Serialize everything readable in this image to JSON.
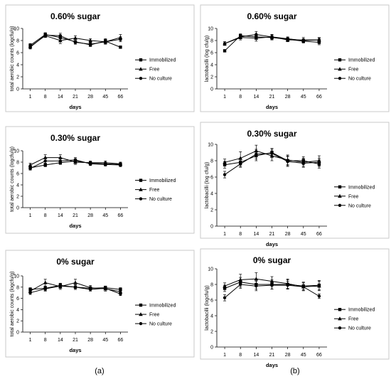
{
  "figure": {
    "panel_labels": [
      "(a)",
      "(b)"
    ]
  },
  "chart_data": [
    {
      "type": "line",
      "title": "0.60% sugar",
      "xlabel": "days",
      "ylabel": "total aerobic counts (logcfu/g)",
      "categories": [
        "1",
        "8",
        "14",
        "21",
        "28",
        "45",
        "66"
      ],
      "ylim": [
        0,
        10
      ],
      "yticks": [
        "0",
        "2",
        "4",
        "6",
        "8",
        "10"
      ],
      "legend_position": "right",
      "series": [
        {
          "name": "Immobilized",
          "marker": "square",
          "values": [
            7.2,
            9.0,
            8.5,
            7.8,
            7.3,
            7.9,
            6.9
          ],
          "err": [
            0.3,
            0.3,
            0.4,
            0.4,
            0.3,
            0.4,
            0.2
          ]
        },
        {
          "name": "Free",
          "marker": "triangle",
          "values": [
            7.0,
            8.8,
            8.0,
            8.4,
            8.0,
            7.8,
            8.5
          ],
          "err": [
            0.3,
            0.3,
            0.5,
            0.4,
            0.3,
            0.4,
            0.5
          ]
        },
        {
          "name": "No culture",
          "marker": "circle",
          "values": [
            6.9,
            8.9,
            8.8,
            7.7,
            7.4,
            7.8,
            8.2
          ],
          "err": [
            0.3,
            0.3,
            0.4,
            0.3,
            0.3,
            0.4,
            0.4
          ]
        }
      ]
    },
    {
      "type": "line",
      "title": "0.60% sugar",
      "xlabel": "days",
      "ylabel": "lactobacilli (log cfu/g)",
      "categories": [
        "1",
        "8",
        "14",
        "21",
        "28",
        "45",
        "66"
      ],
      "ylim": [
        0,
        10
      ],
      "yticks": [
        "0",
        "2",
        "4",
        "6",
        "8",
        "10"
      ],
      "legend_position": "right",
      "series": [
        {
          "name": "Immobilized",
          "marker": "square",
          "values": [
            6.3,
            8.8,
            8.6,
            8.5,
            8.2,
            7.9,
            7.7
          ],
          "err": [
            0.2,
            0.3,
            0.4,
            0.4,
            0.3,
            0.3,
            0.4
          ]
        },
        {
          "name": "Free",
          "marker": "triangle",
          "values": [
            7.5,
            8.5,
            8.4,
            8.6,
            8.1,
            8.1,
            8.1
          ],
          "err": [
            0.3,
            0.4,
            0.5,
            0.4,
            0.3,
            0.4,
            0.4
          ]
        },
        {
          "name": "No culture",
          "marker": "circle",
          "values": [
            7.5,
            8.6,
            9.0,
            8.6,
            8.3,
            8.0,
            8.1
          ],
          "err": [
            0.3,
            0.3,
            0.5,
            0.4,
            0.3,
            0.3,
            0.3
          ]
        }
      ]
    },
    {
      "type": "line",
      "title": "0.30% sugar",
      "xlabel": "days",
      "ylabel": "total aerobic counts (logcfu/g)",
      "categories": [
        "1",
        "8",
        "14",
        "21",
        "28",
        "45",
        "66"
      ],
      "ylim": [
        0,
        10
      ],
      "yticks": [
        "0",
        "2",
        "4",
        "6",
        "8",
        "10"
      ],
      "legend_position": "right",
      "series": [
        {
          "name": "Immobilized",
          "marker": "square",
          "values": [
            7.0,
            7.5,
            7.9,
            8.2,
            7.8,
            7.7,
            7.6
          ],
          "err": [
            0.3,
            0.3,
            0.3,
            0.4,
            0.3,
            0.3,
            0.3
          ]
        },
        {
          "name": "Free",
          "marker": "triangle",
          "values": [
            7.5,
            8.8,
            8.8,
            8.0,
            7.9,
            7.9,
            7.7
          ],
          "err": [
            0.3,
            0.5,
            0.5,
            0.4,
            0.3,
            0.3,
            0.3
          ]
        },
        {
          "name": "No culture",
          "marker": "circle",
          "values": [
            6.9,
            8.2,
            8.2,
            8.4,
            7.7,
            7.6,
            7.5
          ],
          "err": [
            0.3,
            0.4,
            0.4,
            0.4,
            0.3,
            0.3,
            0.3
          ]
        }
      ]
    },
    {
      "type": "line",
      "title": "0.30% sugar",
      "xlabel": "days",
      "ylabel": "lactobacilli (log cfu/g)",
      "categories": [
        "1",
        "8",
        "14",
        "21",
        "28",
        "45",
        "66"
      ],
      "ylim": [
        0,
        10
      ],
      "yticks": [
        "0",
        "2",
        "4",
        "6",
        "8",
        "10"
      ],
      "legend_position": "right",
      "series": [
        {
          "name": "Immobilized",
          "marker": "square",
          "values": [
            7.5,
            7.8,
            8.6,
            9.0,
            8.0,
            8.0,
            7.6
          ],
          "err": [
            0.4,
            0.5,
            0.6,
            0.5,
            0.6,
            0.5,
            0.5
          ]
        },
        {
          "name": "Free",
          "marker": "triangle",
          "values": [
            7.8,
            8.3,
            9.2,
            8.6,
            8.1,
            7.8,
            8.0
          ],
          "err": [
            0.4,
            0.8,
            0.7,
            0.6,
            0.6,
            0.5,
            0.6
          ]
        },
        {
          "name": "No culture",
          "marker": "circle",
          "values": [
            6.3,
            7.6,
            8.8,
            8.9,
            7.9,
            7.7,
            7.8
          ],
          "err": [
            0.4,
            0.4,
            0.6,
            0.5,
            0.6,
            0.5,
            0.5
          ]
        }
      ]
    },
    {
      "type": "line",
      "title": "0% sugar",
      "xlabel": "days",
      "ylabel": "total aerobic counts (logcfu/g)",
      "categories": [
        "1",
        "8",
        "14",
        "21",
        "28",
        "45",
        "66"
      ],
      "ylim": [
        0,
        10
      ],
      "yticks": [
        "0",
        "2",
        "4",
        "6",
        "8",
        "10"
      ],
      "legend_position": "right",
      "series": [
        {
          "name": "Immobilized",
          "marker": "square",
          "values": [
            7.6,
            7.8,
            8.3,
            8.0,
            7.8,
            7.9,
            7.6
          ],
          "err": [
            0.3,
            0.4,
            0.4,
            0.4,
            0.3,
            0.3,
            0.3
          ]
        },
        {
          "name": "Free",
          "marker": "triangle",
          "values": [
            7.3,
            8.8,
            8.1,
            8.8,
            7.9,
            7.7,
            7.2
          ],
          "err": [
            0.3,
            0.6,
            0.5,
            0.6,
            0.4,
            0.4,
            0.4
          ]
        },
        {
          "name": "No culture",
          "marker": "circle",
          "values": [
            7.0,
            7.7,
            8.2,
            8.0,
            7.6,
            7.8,
            6.8
          ],
          "err": [
            0.3,
            0.4,
            0.4,
            0.4,
            0.3,
            0.3,
            0.3
          ]
        }
      ]
    },
    {
      "type": "line",
      "title": "0% sugar",
      "xlabel": "days",
      "ylabel": "lactobacilli (logcfu/g)",
      "categories": [
        "1",
        "8",
        "14",
        "21",
        "28",
        "45",
        "66"
      ],
      "ylim": [
        0,
        10
      ],
      "yticks": [
        "0",
        "2",
        "4",
        "6",
        "8",
        "10"
      ],
      "legend_position": "right",
      "series": [
        {
          "name": "Immobilized",
          "marker": "square",
          "values": [
            7.5,
            8.3,
            8.0,
            8.0,
            8.0,
            7.8,
            7.9
          ],
          "err": [
            0.4,
            0.6,
            0.6,
            0.6,
            0.6,
            0.5,
            0.6
          ]
        },
        {
          "name": "Free",
          "marker": "triangle",
          "values": [
            7.8,
            8.6,
            8.7,
            8.4,
            8.1,
            7.7,
            7.8
          ],
          "err": [
            0.4,
            0.7,
            0.8,
            0.6,
            0.6,
            0.5,
            0.6
          ]
        },
        {
          "name": "No culture",
          "marker": "circle",
          "values": [
            6.3,
            8.0,
            7.8,
            7.9,
            7.9,
            7.7,
            6.5
          ],
          "err": [
            0.4,
            0.5,
            0.6,
            0.5,
            0.5,
            0.5,
            0.3
          ]
        }
      ]
    }
  ]
}
